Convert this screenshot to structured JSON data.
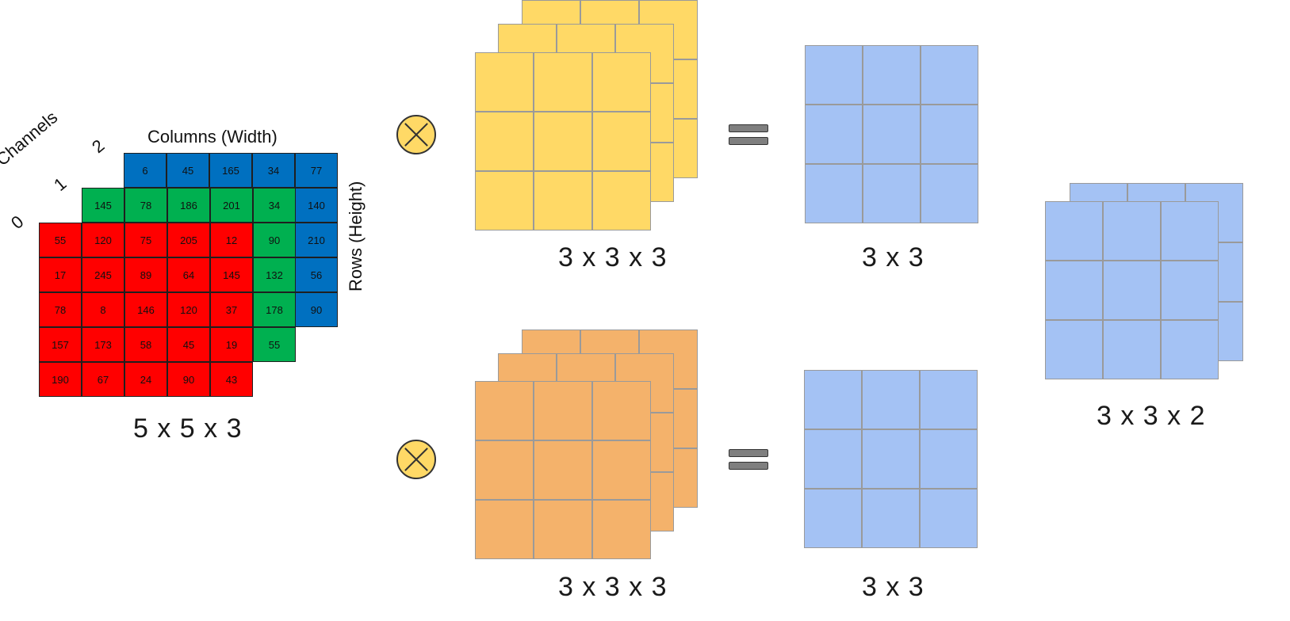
{
  "input": {
    "axis_labels": {
      "channels": "Channels",
      "columns": "Columns (Width)",
      "rows": "Rows (Height)"
    },
    "channel_indices": [
      "0",
      "1",
      "2"
    ],
    "channel0": [
      [
        "55",
        "120",
        "75",
        "205",
        "12"
      ],
      [
        "17",
        "245",
        "89",
        "64",
        "145"
      ],
      [
        "78",
        "8",
        "146",
        "120",
        "37"
      ],
      [
        "157",
        "173",
        "58",
        "45",
        "19"
      ],
      [
        "190",
        "67",
        "24",
        "90",
        "43"
      ]
    ],
    "channel1_visible_row0": [
      "145",
      "78",
      "186",
      "201",
      "34"
    ],
    "channel1_visible_col4": [
      "90",
      "132",
      "178",
      "55"
    ],
    "channel2_visible_row0": [
      "6",
      "45",
      "165",
      "34",
      "77"
    ],
    "channel2_visible_col4": [
      "140",
      "210",
      "56",
      "90"
    ],
    "dims": "5 x 5 x 3",
    "colors": {
      "channel0": "#ff0000",
      "channel1": "#00b050",
      "channel2": "#0070c0"
    }
  },
  "filter1": {
    "dims": "3 x 3 x 3",
    "color": "#ffd966",
    "operator": "convolution-icon"
  },
  "filter2": {
    "dims": "3 x 3 x 3",
    "color": "#f4b26b",
    "operator": "convolution-icon"
  },
  "output1": {
    "dims": "3 x 3",
    "color": "#a4c2f4",
    "operator": "equals-icon"
  },
  "output2": {
    "dims": "3 x 3",
    "color": "#a4c2f4",
    "operator": "equals-icon"
  },
  "stacked_output": {
    "dims": "3 x 3 x 2",
    "color": "#a4c2f4"
  }
}
